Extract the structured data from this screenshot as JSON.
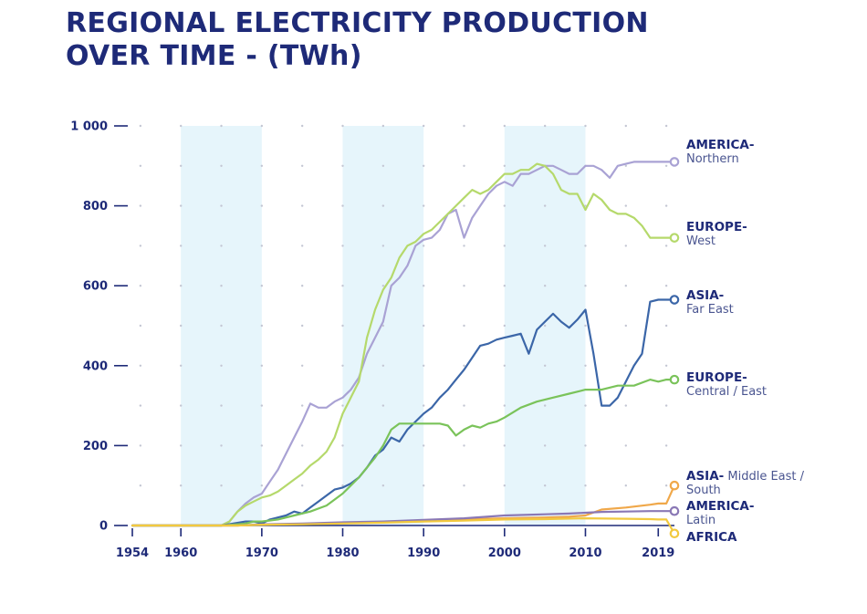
{
  "title_line1": "REGIONAL ELECTRICITY PRODUCTION",
  "title_line2": "OVER TIME  - (TWh)",
  "colors": {
    "title": "#1e2a78",
    "band": "#e6f5fb",
    "axis": "#1e2a78"
  },
  "chart_data": {
    "type": "line",
    "title": "REGIONAL ELECTRICITY PRODUCTION OVER TIME  - (TWh)",
    "xlim": [
      1954,
      2021
    ],
    "ylim": [
      0,
      1000
    ],
    "xticks": [
      1954,
      1960,
      1970,
      1980,
      1990,
      2000,
      2010,
      2019
    ],
    "yticks": [
      0,
      200,
      400,
      600,
      800,
      1000
    ],
    "ytick_labels": [
      "0",
      "200",
      "400",
      "600",
      "800",
      "1 000"
    ],
    "bands": [
      [
        1960,
        1970
      ],
      [
        1980,
        1990
      ],
      [
        2000,
        2010
      ]
    ],
    "grid": "dotted",
    "series": [
      {
        "name": "AMERICA - Northern",
        "label_main": "AMERICA",
        "label_sub": "Northern",
        "color": "#a9a2d4",
        "x": [
          1954,
          1965,
          1966,
          1967,
          1968,
          1969,
          1970,
          1971,
          1972,
          1973,
          1974,
          1975,
          1976,
          1977,
          1978,
          1979,
          1980,
          1981,
          1982,
          1983,
          1984,
          1985,
          1986,
          1987,
          1988,
          1989,
          1990,
          1991,
          1992,
          1993,
          1994,
          1995,
          1996,
          1997,
          1998,
          1999,
          2000,
          2001,
          2002,
          2003,
          2004,
          2005,
          2006,
          2007,
          2008,
          2009,
          2010,
          2011,
          2012,
          2013,
          2014,
          2015,
          2016,
          2017,
          2018,
          2019,
          2020,
          2021
        ],
        "y": [
          0,
          0,
          10,
          35,
          55,
          70,
          80,
          110,
          140,
          180,
          220,
          260,
          305,
          295,
          295,
          310,
          320,
          340,
          370,
          430,
          470,
          510,
          600,
          620,
          650,
          700,
          715,
          720,
          740,
          780,
          790,
          720,
          770,
          800,
          830,
          850,
          860,
          850,
          880,
          880,
          890,
          900,
          900,
          890,
          880,
          880,
          900,
          900,
          890,
          870,
          900,
          905,
          910,
          910,
          910,
          910,
          910,
          910
        ]
      },
      {
        "name": "EUROPE - West",
        "label_main": "EUROPE",
        "label_sub": "West",
        "color": "#b5d96b",
        "x": [
          1954,
          1965,
          1966,
          1967,
          1968,
          1969,
          1970,
          1971,
          1972,
          1973,
          1974,
          1975,
          1976,
          1977,
          1978,
          1979,
          1980,
          1981,
          1982,
          1983,
          1984,
          1985,
          1986,
          1987,
          1988,
          1989,
          1990,
          1991,
          1992,
          1993,
          1994,
          1995,
          1996,
          1997,
          1998,
          1999,
          2000,
          2001,
          2002,
          2003,
          2004,
          2005,
          2006,
          2007,
          2008,
          2009,
          2010,
          2011,
          2012,
          2013,
          2014,
          2015,
          2016,
          2017,
          2018,
          2019,
          2020,
          2021
        ],
        "y": [
          0,
          0,
          10,
          35,
          50,
          60,
          70,
          75,
          85,
          100,
          115,
          130,
          150,
          165,
          185,
          220,
          280,
          320,
          360,
          470,
          540,
          590,
          620,
          670,
          700,
          710,
          730,
          740,
          760,
          780,
          800,
          820,
          840,
          830,
          840,
          860,
          880,
          880,
          890,
          890,
          905,
          900,
          880,
          840,
          830,
          830,
          790,
          830,
          815,
          790,
          780,
          780,
          770,
          750,
          720,
          720,
          720,
          720
        ]
      },
      {
        "name": "ASIA - Far East",
        "label_main": "ASIA",
        "label_sub": "Far East",
        "color": "#3b66a8",
        "x": [
          1954,
          1965,
          1968,
          1969,
          1970,
          1971,
          1972,
          1973,
          1974,
          1975,
          1976,
          1977,
          1978,
          1979,
          1980,
          1981,
          1982,
          1983,
          1984,
          1985,
          1986,
          1987,
          1988,
          1989,
          1990,
          1991,
          1992,
          1993,
          1994,
          1995,
          1996,
          1997,
          1998,
          1999,
          2000,
          2001,
          2002,
          2003,
          2004,
          2005,
          2006,
          2007,
          2008,
          2009,
          2010,
          2011,
          2012,
          2013,
          2014,
          2015,
          2016,
          2017,
          2018,
          2019,
          2020,
          2021
        ],
        "y": [
          0,
          0,
          10,
          10,
          5,
          15,
          20,
          25,
          35,
          30,
          45,
          60,
          75,
          90,
          95,
          105,
          120,
          145,
          175,
          190,
          220,
          210,
          240,
          260,
          280,
          295,
          320,
          340,
          365,
          390,
          420,
          450,
          455,
          465,
          470,
          475,
          480,
          430,
          490,
          510,
          530,
          510,
          495,
          515,
          540,
          430,
          300,
          300,
          320,
          360,
          400,
          430,
          560,
          565,
          565,
          565
        ]
      },
      {
        "name": "EUROPE - Central / East",
        "label_main": "EUROPE",
        "label_sub": "Central / East",
        "color": "#7ac35a",
        "x": [
          1954,
          1965,
          1968,
          1969,
          1970,
          1972,
          1974,
          1976,
          1978,
          1980,
          1982,
          1984,
          1985,
          1986,
          1987,
          1988,
          1990,
          1992,
          1993,
          1994,
          1995,
          1996,
          1997,
          1998,
          1999,
          2000,
          2002,
          2004,
          2006,
          2008,
          2010,
          2012,
          2014,
          2016,
          2018,
          2019,
          2020,
          2021
        ],
        "y": [
          0,
          0,
          5,
          10,
          10,
          15,
          25,
          35,
          50,
          80,
          120,
          170,
          200,
          240,
          255,
          255,
          255,
          255,
          250,
          225,
          240,
          250,
          245,
          255,
          260,
          270,
          295,
          310,
          320,
          330,
          340,
          340,
          350,
          350,
          365,
          360,
          365,
          365
        ]
      },
      {
        "name": "ASIA - Middle East / South",
        "label_main": "ASIA",
        "label_sub": "Middle East / South",
        "color": "#f0a84a",
        "x": [
          1954,
          1967,
          1970,
          1975,
          1980,
          1985,
          1990,
          1995,
          2000,
          2005,
          2008,
          2010,
          2012,
          2015,
          2018,
          2019,
          2020,
          2021
        ],
        "y": [
          0,
          0,
          2,
          4,
          6,
          8,
          12,
          15,
          18,
          20,
          22,
          25,
          40,
          45,
          52,
          55,
          55,
          100
        ]
      },
      {
        "name": "AMERICA - Latin",
        "label_main": "AMERICA",
        "label_sub": "Latin",
        "color": "#8a78b5",
        "x": [
          1954,
          1967,
          1970,
          1975,
          1980,
          1985,
          1990,
          1995,
          2000,
          2005,
          2008,
          2010,
          2012,
          2015,
          2018,
          2019,
          2020,
          2021
        ],
        "y": [
          0,
          0,
          3,
          5,
          8,
          10,
          14,
          18,
          25,
          28,
          30,
          32,
          34,
          35,
          36,
          36,
          36,
          36
        ]
      },
      {
        "name": "AFRICA",
        "label_main": "AFRICA",
        "label_sub": "",
        "color": "#f2c93e",
        "x": [
          1954,
          1967,
          1970,
          1975,
          1980,
          1985,
          1990,
          1995,
          2000,
          2005,
          2010,
          2015,
          2018,
          2019,
          2020,
          2021
        ],
        "y": [
          0,
          0,
          2,
          3,
          5,
          7,
          10,
          12,
          15,
          16,
          18,
          17,
          16,
          15,
          15,
          -20
        ]
      }
    ]
  }
}
